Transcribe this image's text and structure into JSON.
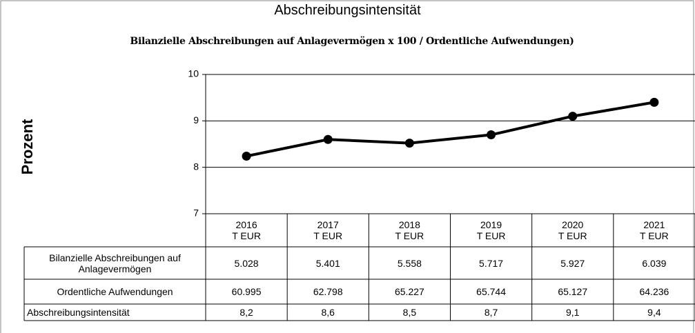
{
  "chart_data": {
    "type": "line",
    "title": "Abschreibungsintensität",
    "subtitle": "Bilanzielle Abschreibungen auf Anlagevermögen x 100 / Ordentliche Aufwendungen)",
    "y_label": "Prozent",
    "categories": [
      "2016",
      "2017",
      "2018",
      "2019",
      "2020",
      "2021"
    ],
    "category_unit": "T EUR",
    "series": [
      {
        "name": "Abschreibungsintensität",
        "color": "#000000",
        "values": [
          8.24,
          8.6,
          8.52,
          8.7,
          9.1,
          9.4
        ],
        "value_labels": [
          "8,2",
          "8,6",
          "8,5",
          "8,7",
          "9,1",
          "9,4"
        ]
      }
    ],
    "ylim": [
      7,
      10
    ],
    "yticks": [
      7,
      8,
      9,
      10
    ],
    "grid": true,
    "table": {
      "rows": [
        {
          "label": "Bilanzielle Abschreibungen auf Anlagevermögen",
          "cells": [
            "5.028",
            "5.401",
            "5.558",
            "5.717",
            "5.927",
            "6.039"
          ]
        },
        {
          "label": "Ordentliche Aufwendungen",
          "cells": [
            "60.995",
            "62.798",
            "65.227",
            "65.744",
            "65.127",
            "64.236"
          ]
        }
      ]
    }
  }
}
